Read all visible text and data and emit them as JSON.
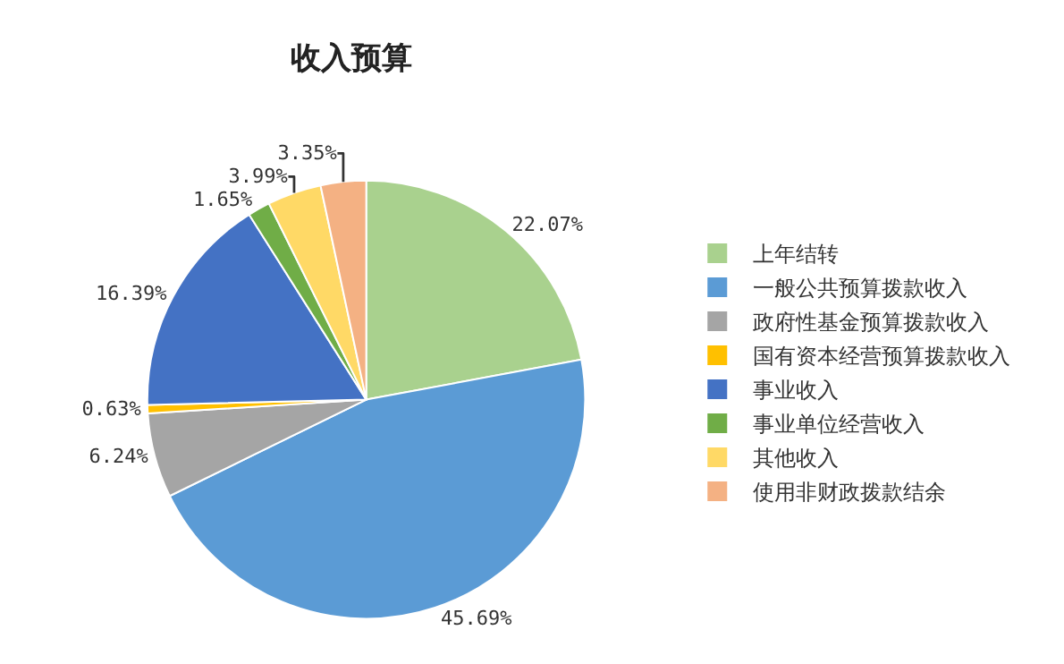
{
  "chart_data": {
    "type": "pie",
    "title": "收入预算",
    "categories": [
      "上年结转",
      "一般公共预算拨款收入",
      "政府性基金预算拨款收入",
      "国有资本经营预算拨款收入",
      "事业收入",
      "事业单位经营收入",
      "其他收入",
      "使用非财政拨款结余"
    ],
    "values": [
      22.07,
      45.69,
      6.24,
      0.63,
      16.39,
      1.65,
      3.99,
      3.35
    ],
    "value_labels": [
      "22.07%",
      "45.69%",
      "6.24%",
      "0.63%",
      "16.39%",
      "1.65%",
      "3.99%",
      "3.35%"
    ],
    "colors": [
      "#a9d18e",
      "#5b9bd5",
      "#a5a5a5",
      "#ffc000",
      "#4472c4",
      "#70ad47",
      "#ffd966",
      "#f4b183"
    ],
    "legend": "right"
  }
}
